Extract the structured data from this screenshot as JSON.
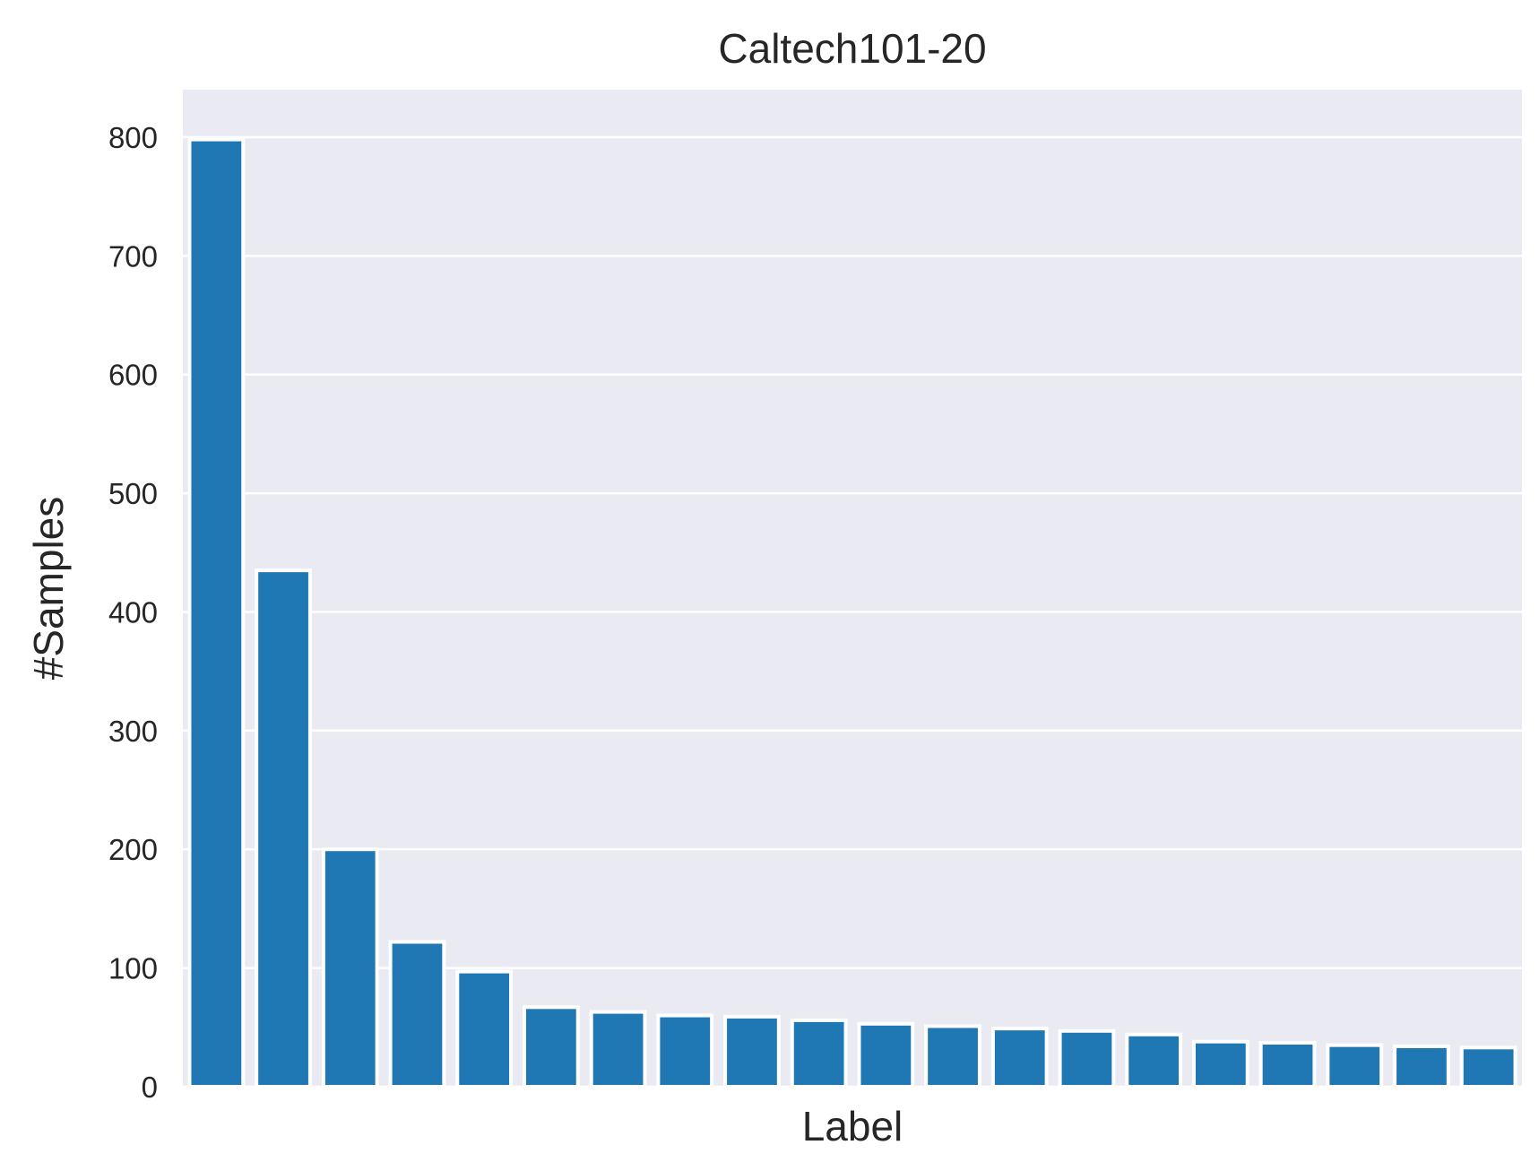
{
  "chart_data": {
    "type": "bar",
    "title": "Caltech101-20",
    "xlabel": "Label",
    "ylabel": "#Samples",
    "categories": [
      "",
      "",
      "",
      "",
      "",
      "",
      "",
      "",
      "",
      "",
      "",
      "",
      "",
      "",
      "",
      "",
      "",
      "",
      "",
      ""
    ],
    "values": [
      798,
      435,
      200,
      122,
      97,
      67,
      63,
      60,
      59,
      56,
      53,
      51,
      49,
      47,
      44,
      38,
      37,
      35,
      34,
      33
    ],
    "ylim": [
      0,
      840
    ],
    "yticks": [
      0,
      100,
      200,
      300,
      400,
      500,
      600,
      700,
      800
    ],
    "grid": true,
    "x_tick_labels_shown": false,
    "background_color": "#eaeaf2",
    "bar_color": "#1f77b4",
    "grid_color": "#ffffff"
  }
}
